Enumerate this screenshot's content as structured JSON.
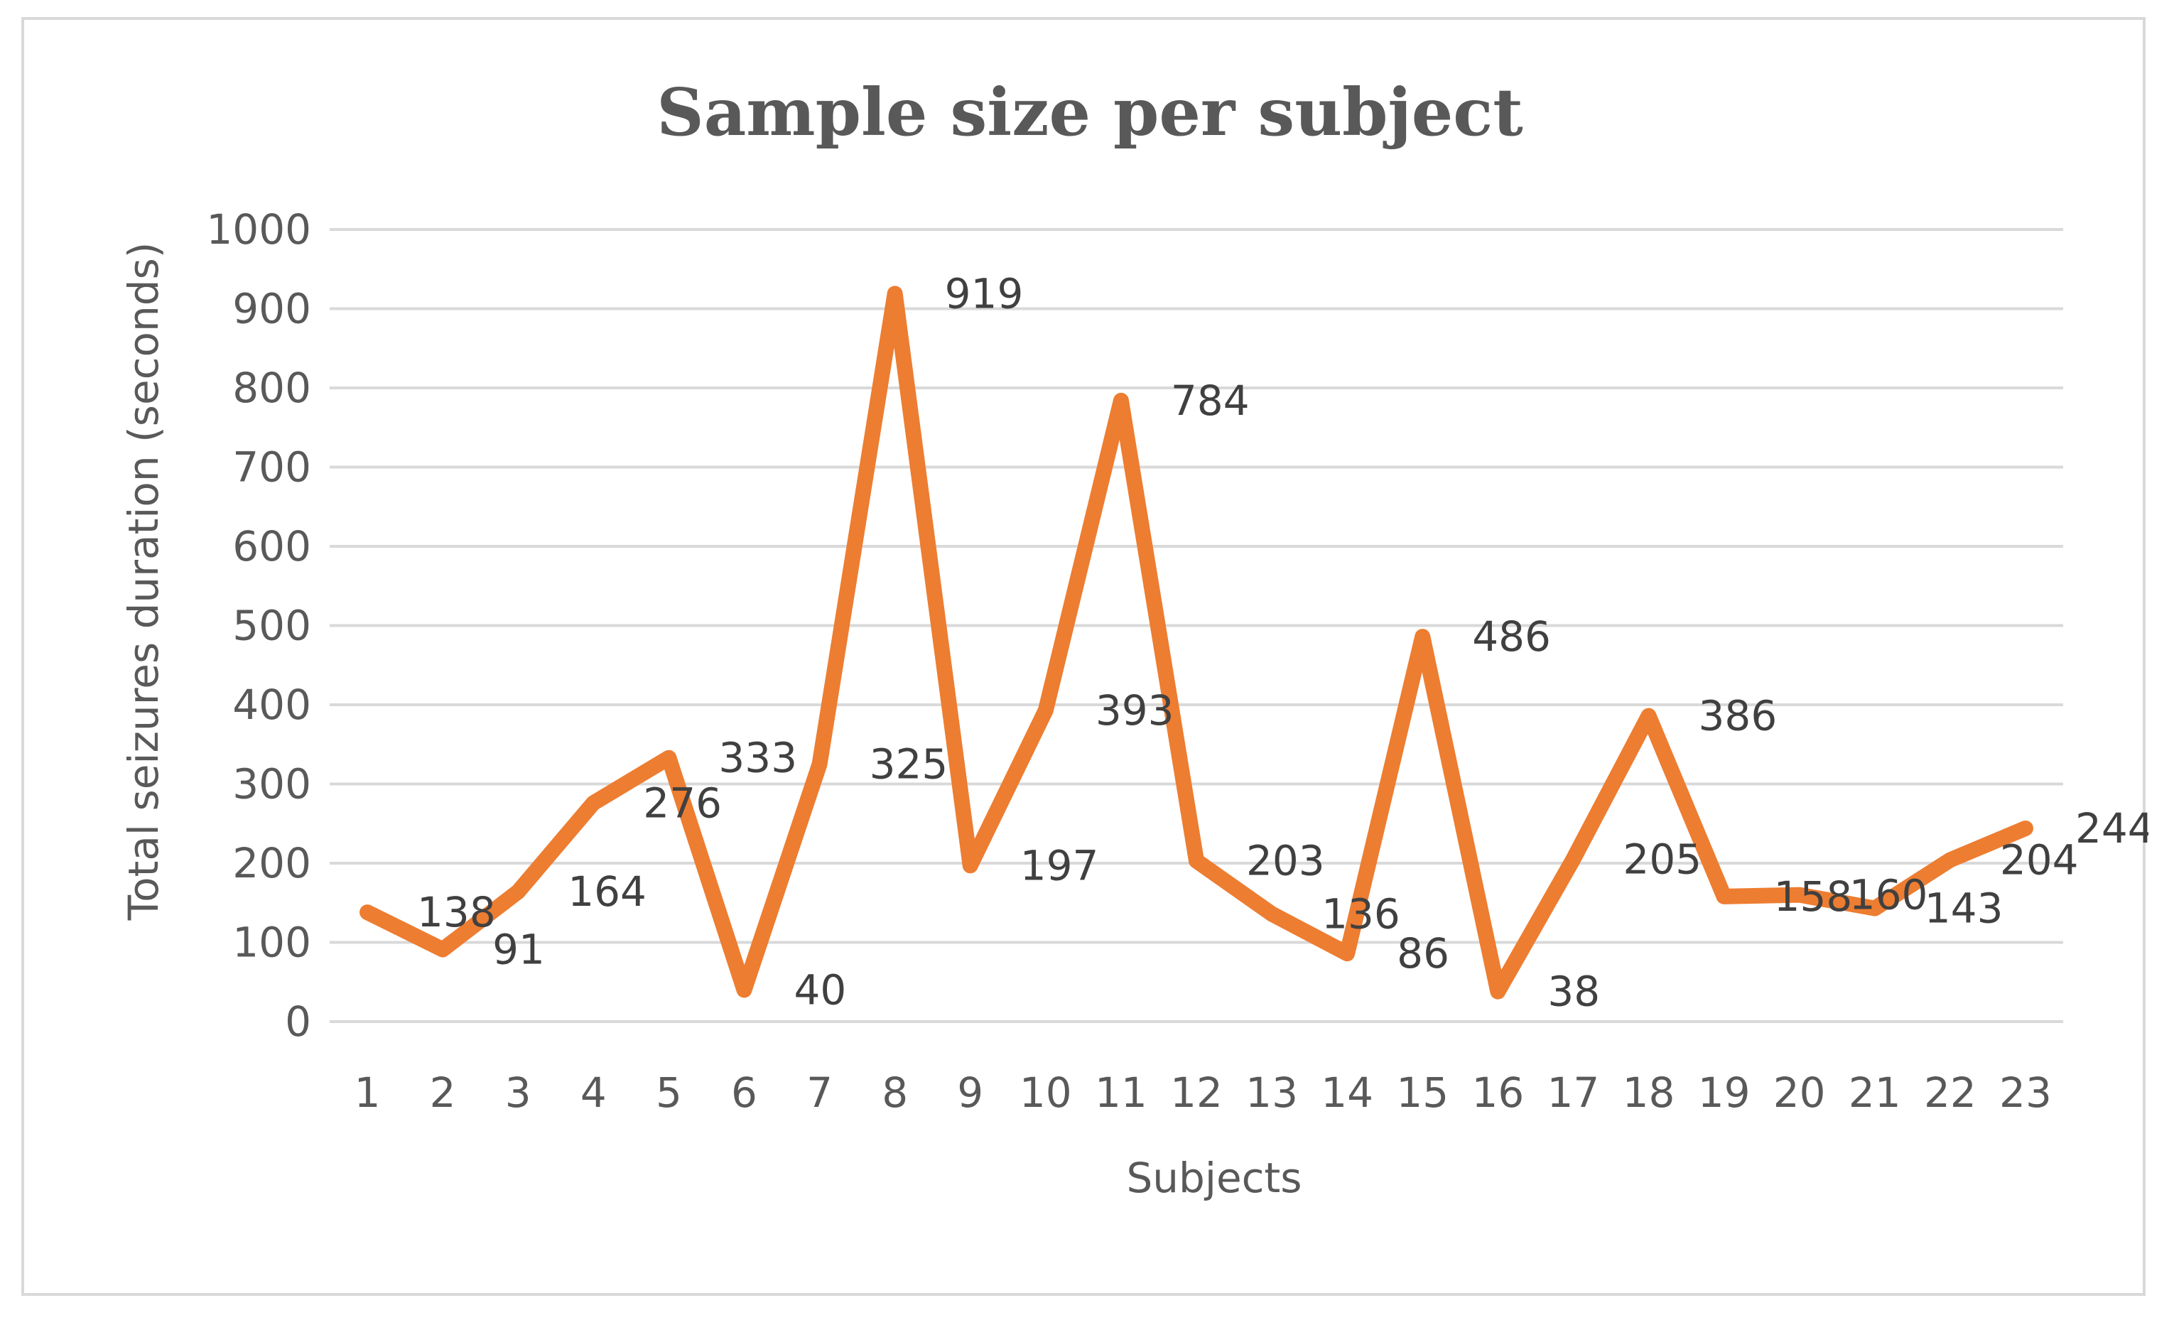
{
  "chart_data": {
    "type": "line",
    "title": "Sample size per subject",
    "xlabel": "Subjects",
    "ylabel": "Total seizures  duration (seconds)",
    "categories": [
      "1",
      "2",
      "3",
      "4",
      "5",
      "6",
      "7",
      "8",
      "9",
      "10",
      "11",
      "12",
      "13",
      "14",
      "15",
      "16",
      "17",
      "18",
      "19",
      "20",
      "21",
      "22",
      "23"
    ],
    "series": [
      {
        "color": "#ed7d31",
        "values": [
          138,
          91,
          164,
          276,
          333,
          40,
          325,
          919,
          197,
          393,
          784,
          203,
          136,
          86,
          486,
          38,
          205,
          386,
          158,
          160,
          143,
          204,
          244
        ]
      }
    ],
    "ylim": [
      0,
      1000
    ],
    "yticks": [
      0,
      100,
      200,
      300,
      400,
      500,
      600,
      700,
      800,
      900,
      1000
    ],
    "grid": true,
    "legend": "none"
  }
}
